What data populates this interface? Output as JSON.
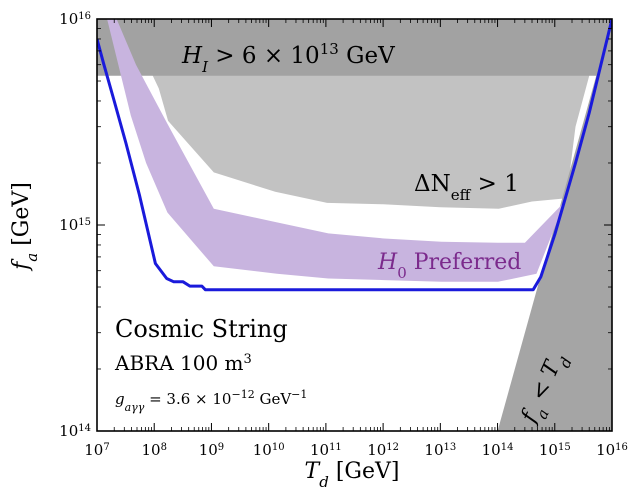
{
  "chart_data": {
    "type": "area",
    "x_scale": "log",
    "y_scale": "log",
    "xlim": [
      10000000.0,
      1e+16
    ],
    "ylim": [
      100000000000000.0,
      1e+16
    ],
    "xlabel": {
      "main": "T",
      "sub": "d",
      "unit": " [GeV]"
    },
    "ylabel": {
      "main": "f",
      "sub": "a",
      "unit": " [GeV]"
    },
    "xticks": [
      {
        "value": 10000000.0,
        "base": "10",
        "exp": "7"
      },
      {
        "value": 100000000.0,
        "base": "10",
        "exp": "8"
      },
      {
        "value": 1000000000.0,
        "base": "10",
        "exp": "9"
      },
      {
        "value": 10000000000.0,
        "base": "10",
        "exp": "10"
      },
      {
        "value": 100000000000.0,
        "base": "10",
        "exp": "11"
      },
      {
        "value": 1000000000000.0,
        "base": "10",
        "exp": "12"
      },
      {
        "value": 10000000000000.0,
        "base": "10",
        "exp": "13"
      },
      {
        "value": 100000000000000.0,
        "base": "10",
        "exp": "14"
      },
      {
        "value": 1000000000000000.0,
        "base": "10",
        "exp": "15"
      },
      {
        "value": 1e+16,
        "base": "10",
        "exp": "16"
      }
    ],
    "yticks": [
      {
        "value": 100000000000000.0,
        "base": "10",
        "exp": "14"
      },
      {
        "value": 1000000000000000.0,
        "base": "10",
        "exp": "15"
      },
      {
        "value": 1e+16,
        "base": "10",
        "exp": "16"
      }
    ],
    "regions": [
      {
        "key": "dneff",
        "label": "ΔN_eff > 1",
        "color": "#c2c2c2",
        "points": [
          [
            10000000.0,
            1e+16
          ],
          [
            32000000.0,
            1e+16
          ],
          [
            120000000.0,
            4600000000000000.0
          ],
          [
            175000000.0,
            3200000000000000.0
          ],
          [
            1100000000.0,
            1800000000000000.0
          ],
          [
            13000000000.0,
            1450000000000000.0
          ],
          [
            105000000000.0,
            1280000000000000.0
          ],
          [
            1000000000000.0,
            1260000000000000.0
          ],
          [
            10000000000000.0,
            1220000000000000.0
          ],
          [
            105000000000000.0,
            1200000000000000.0
          ],
          [
            400000000000000.0,
            1300000000000000.0
          ],
          [
            1600000000000000.0,
            1350000000000000.0
          ],
          [
            2300000000000000.0,
            3000000000000000.0
          ],
          [
            4500000000000000.0,
            6000000000000000.0
          ],
          [
            6700000000000000.0,
            1e+16
          ]
        ]
      },
      {
        "key": "HI",
        "label": "H_I > 6 × 10^13 GeV",
        "color": "#a2a2a2",
        "points": [
          [
            10000000.0,
            1e+16
          ],
          [
            1e+16,
            1e+16
          ],
          [
            1e+16,
            5300000000000000.0
          ],
          [
            10000000.0,
            5300000000000000.0
          ]
        ]
      },
      {
        "key": "fa_lt_Td",
        "label": "f_a < T_d",
        "color": "#a5a5a5",
        "points": [
          [
            100000000000000.0,
            100000000000000.0
          ],
          [
            1e+16,
            1e+16
          ],
          [
            1e+16,
            100000000000000.0
          ]
        ]
      },
      {
        "key": "H0",
        "label": "H_0 Preferred",
        "color": "#c8b4df",
        "upper": [
          [
            22000000.0,
            1e+16
          ],
          [
            48000000.0,
            6000000000000000.0
          ],
          [
            170000000.0,
            3100000000000000.0
          ],
          [
            1100000000.0,
            1200000000000000.0
          ],
          [
            14000000000.0,
            1030000000000000.0
          ],
          [
            110000000000.0,
            910000000000000.0
          ],
          [
            1050000000000.0,
            860000000000000.0
          ],
          [
            10500000000000.0,
            830000000000000.0
          ],
          [
            102000000000000.0,
            820000000000000.0
          ],
          [
            300000000000000.0,
            820000000000000.0
          ],
          [
            1500000000000000.0,
            1300000000000000.0
          ]
        ],
        "lower": [
          [
            1500000000000000.0,
            1300000000000000.0
          ],
          [
            480000000000000.0,
            580000000000000.0
          ],
          [
            102000000000000.0,
            530000000000000.0
          ],
          [
            10500000000000.0,
            530000000000000.0
          ],
          [
            1050000000000.0,
            540000000000000.0
          ],
          [
            110000000000.0,
            550000000000000.0
          ],
          [
            14000000000.0,
            580000000000000.0
          ],
          [
            1100000000.0,
            630000000000000.0
          ],
          [
            170000000.0,
            1150000000000000.0
          ],
          [
            72000000.0,
            2000000000000000.0
          ],
          [
            39000000.0,
            3400000000000000.0
          ],
          [
            15000000.0,
            1e+16
          ]
        ]
      }
    ],
    "series": [
      {
        "name": "ABRA 100 m³",
        "color": "#1a1adb",
        "points": [
          [
            10000000.0,
            8000000000000000.0
          ],
          [
            13000000.0,
            6100000000000000.0
          ],
          [
            20000000.0,
            4000000000000000.0
          ],
          [
            32000000.0,
            2500000000000000.0
          ],
          [
            55000000.0,
            1400000000000000.0
          ],
          [
            105000000.0,
            650000000000000.0
          ],
          [
            165000000.0,
            550000000000000.0
          ],
          [
            220000000.0,
            530000000000000.0
          ],
          [
            320000000.0,
            530000000000000.0
          ],
          [
            420000000.0,
            505000000000000.0
          ],
          [
            680000000.0,
            505000000000000.0
          ],
          [
            780000000.0,
            485000000000000.0
          ],
          [
            100000000000.0,
            485000000000000.0
          ],
          [
            420000000000000.0,
            485000000000000.0
          ],
          [
            570000000000000.0,
            560000000000000.0
          ],
          [
            1000000000000000.0,
            900000000000000.0
          ],
          [
            2300000000000000.0,
            2000000000000000.0
          ],
          [
            4000000000000000.0,
            3500000000000000.0
          ],
          [
            1e+16,
            1e+16
          ]
        ]
      }
    ],
    "grid": false,
    "annotations": {
      "HI": {
        "a": "H",
        "a_sub": "I",
        "b": " > 6 × 10",
        "b_sup": "13",
        "c": " GeV"
      },
      "dneff": {
        "a": "ΔN",
        "a_sub": "eff",
        "b": " > 1"
      },
      "H0": {
        "a": "H",
        "a_sub": "0",
        "b": " Preferred",
        "color": "#7b2a8c"
      },
      "fa_lt_Td": {
        "a": "f",
        "a_sub": "a",
        "b": " < ",
        "c": "T",
        "c_sub": "d"
      },
      "model": "Cosmic String",
      "exp": {
        "a": "ABRA 100 m",
        "a_sup": "3"
      },
      "coupling": {
        "a": "g",
        "a_sub": "aγγ",
        "b": " = 3.6 × 10",
        "b_sup": "−12",
        "c": " GeV",
        "c_sup": "−1"
      }
    }
  }
}
